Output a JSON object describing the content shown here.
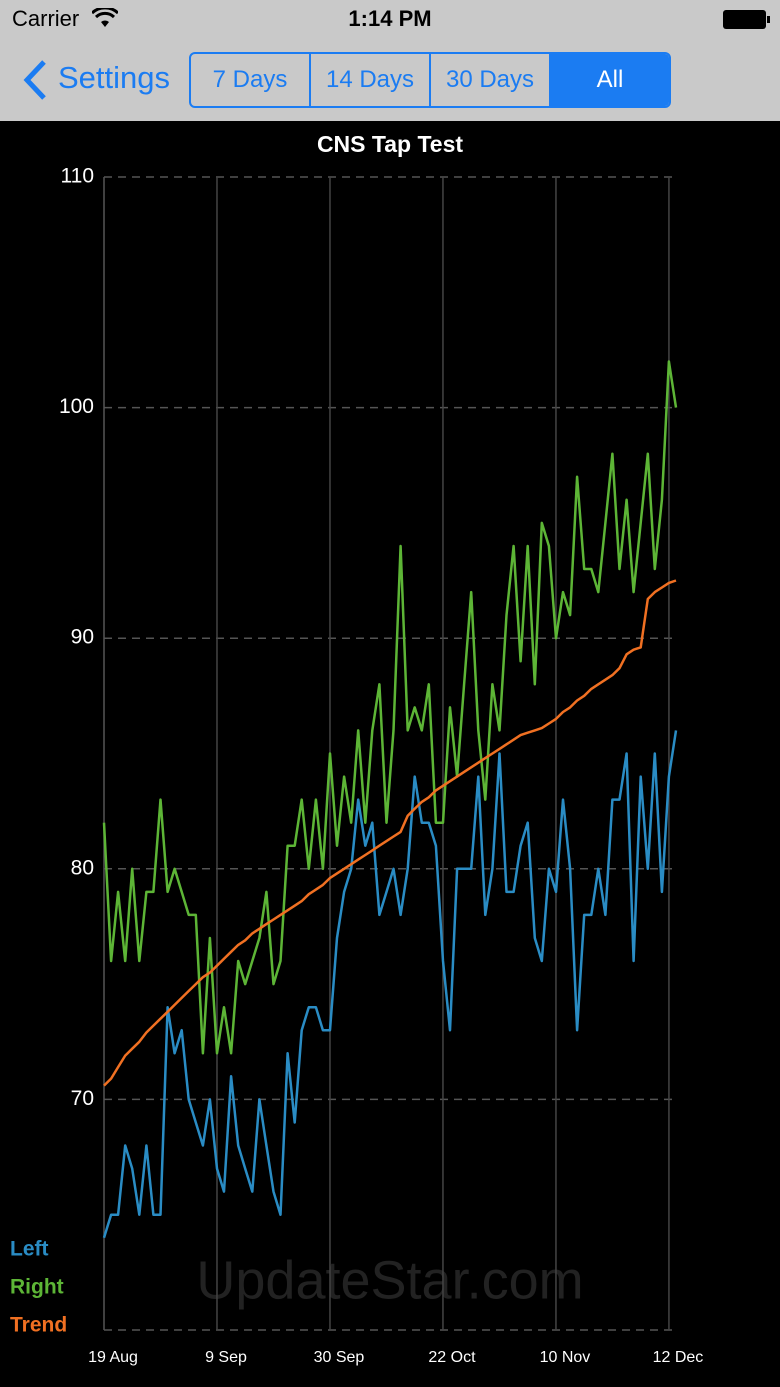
{
  "status_bar": {
    "carrier": "Carrier",
    "time": "1:14 PM"
  },
  "nav": {
    "back": "Settings",
    "segments": [
      "7 Days",
      "14 Days",
      "30 Days",
      "All"
    ],
    "selected": 3
  },
  "watermark": "UpdateStar.com",
  "chart_data": {
    "type": "line",
    "title": "CNS Tap Test",
    "categories": [
      "19 Aug",
      null,
      null,
      null,
      null,
      null,
      null,
      null,
      null,
      null,
      null,
      null,
      null,
      null,
      null,
      null,
      "9 Sep",
      null,
      null,
      null,
      null,
      null,
      null,
      null,
      null,
      null,
      null,
      null,
      null,
      null,
      null,
      null,
      "30 Sep",
      null,
      null,
      null,
      null,
      null,
      null,
      null,
      null,
      null,
      null,
      null,
      null,
      null,
      null,
      null,
      "22 Oct",
      null,
      null,
      null,
      null,
      null,
      null,
      null,
      null,
      null,
      null,
      null,
      null,
      null,
      null,
      null,
      "10 Nov",
      null,
      null,
      null,
      null,
      null,
      null,
      null,
      null,
      null,
      null,
      null,
      null,
      null,
      null,
      null,
      "12 Dec",
      null
    ],
    "series": [
      {
        "name": "Left",
        "color": "#2a8cc4",
        "values": [
          64,
          65,
          65,
          68,
          67,
          65,
          68,
          65,
          65,
          74,
          72,
          73,
          70,
          69,
          68,
          70,
          67,
          66,
          71,
          68,
          67,
          66,
          70,
          68,
          66,
          65,
          72,
          69,
          73,
          74,
          74,
          73,
          73,
          77,
          79,
          80,
          83,
          81,
          82,
          78,
          79,
          80,
          78,
          80,
          84,
          82,
          82,
          81,
          76,
          73,
          80,
          80,
          80,
          84,
          78,
          80,
          85,
          79,
          79,
          81,
          82,
          77,
          76,
          80,
          79,
          83,
          80,
          73,
          78,
          78,
          80,
          78,
          83,
          83,
          85,
          76,
          84,
          80,
          85,
          79,
          84,
          86
        ]
      },
      {
        "name": "Right",
        "color": "#5db536",
        "values": [
          82,
          76,
          79,
          76,
          80,
          76,
          79,
          79,
          83,
          79,
          80,
          79,
          78,
          78,
          72,
          77,
          72,
          74,
          72,
          76,
          75,
          76,
          77,
          79,
          75,
          76,
          81,
          81,
          83,
          80,
          83,
          80,
          85,
          81,
          84,
          82,
          86,
          82,
          86,
          88,
          82,
          86,
          94,
          86,
          87,
          86,
          88,
          82,
          82,
          87,
          84,
          88,
          92,
          86,
          83,
          88,
          86,
          91,
          94,
          89,
          94,
          88,
          95,
          94,
          90,
          92,
          91,
          97,
          93,
          93,
          92,
          95,
          98,
          93,
          96,
          92,
          95,
          98,
          93,
          96,
          102,
          100
        ]
      },
      {
        "name": "Trend",
        "color": "#f07022",
        "values": [
          70.6,
          70.9,
          71.4,
          71.9,
          72.2,
          72.5,
          72.9,
          73.2,
          73.5,
          73.8,
          74.1,
          74.4,
          74.7,
          75.0,
          75.3,
          75.5,
          75.8,
          76.1,
          76.4,
          76.7,
          76.9,
          77.2,
          77.4,
          77.6,
          77.8,
          78.0,
          78.2,
          78.4,
          78.6,
          78.9,
          79.1,
          79.3,
          79.6,
          79.8,
          80.0,
          80.2,
          80.4,
          80.6,
          80.8,
          81.0,
          81.2,
          81.4,
          81.6,
          82.3,
          82.6,
          82.9,
          83.1,
          83.4,
          83.6,
          83.8,
          84.0,
          84.2,
          84.4,
          84.6,
          84.8,
          85.0,
          85.2,
          85.4,
          85.6,
          85.8,
          85.9,
          86.0,
          86.1,
          86.3,
          86.5,
          86.8,
          87.0,
          87.3,
          87.5,
          87.8,
          88.0,
          88.2,
          88.4,
          88.7,
          89.3,
          89.5,
          89.6,
          91.7,
          92.0,
          92.2,
          92.4,
          92.5
        ]
      }
    ],
    "ylim": [
      60,
      110
    ],
    "yticks": [
      70,
      80,
      90,
      100,
      110
    ],
    "grid": true,
    "legend": "bottom-left"
  }
}
